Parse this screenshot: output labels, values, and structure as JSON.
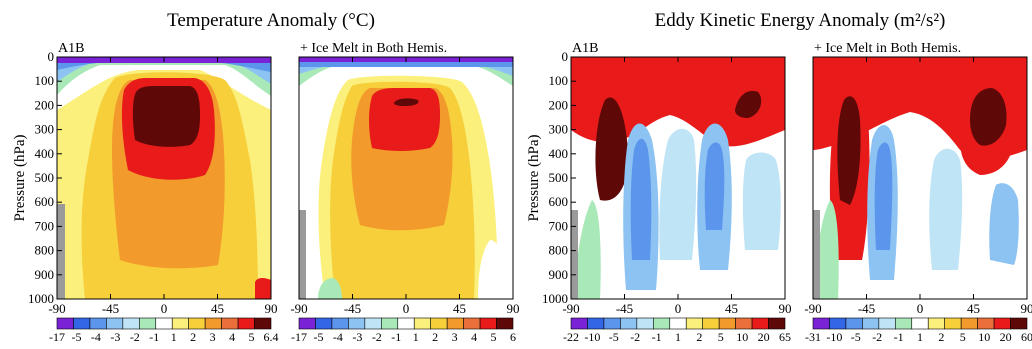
{
  "titles": {
    "temperature": "Temperature Anomaly (°C)",
    "eke": "Eddy Kinetic Energy Anomaly (m²/s²)"
  },
  "chart_data": [
    {
      "type": "heatmap",
      "title": "Temperature Anomaly (°C)",
      "panel_label": "A1B",
      "x_ticks": [
        -90,
        -45,
        0,
        45,
        90
      ],
      "y_ticks": [
        0,
        100,
        200,
        300,
        400,
        500,
        600,
        700,
        800,
        900,
        1000
      ],
      "ylabel": "Pressure (hPa)",
      "xlim": [
        -90,
        90
      ],
      "ylim": [
        1000,
        0
      ],
      "colorbar": {
        "labels": [
          "-17",
          "-5",
          "-4",
          "-3",
          "-2",
          "-1",
          "1",
          "2",
          "3",
          "4",
          "5",
          "6.4"
        ],
        "colors": [
          "#7a22d6",
          "#3366e6",
          "#5c95ec",
          "#8cc3f2",
          "#bfe4f5",
          "#a9e9b8",
          "#ffffff",
          "#fbf07c",
          "#f6cf3b",
          "#f39a2c",
          "#ea6f3b",
          "#e81a1a",
          "#5e0808"
        ]
      },
      "regions": [
        {
          "level": "-17..-5",
          "lat": [
            -90,
            90
          ],
          "p": [
            0,
            22
          ]
        },
        {
          "level": "-5..-4",
          "lat": [
            -90,
            90
          ],
          "p": [
            0,
            40
          ]
        },
        {
          "level": "2..3",
          "lat": [
            -68,
            72
          ],
          "p": [
            60,
            1000
          ]
        },
        {
          "level": "3..4",
          "lat": [
            -35,
            48
          ],
          "p": [
            60,
            860
          ]
        },
        {
          "level": "5..6.4",
          "lat": [
            -28,
            28
          ],
          "p": [
            110,
            500
          ]
        },
        {
          "level": ">6.4",
          "lat": [
            -18,
            18
          ],
          "p": [
            130,
            330
          ]
        }
      ]
    },
    {
      "type": "heatmap",
      "title": "Temperature Anomaly (°C)",
      "panel_label": "+ Ice Melt in Both Hemis.",
      "x_ticks": [
        -90,
        -45,
        0,
        45,
        90
      ],
      "y_ticks": [
        0,
        100,
        200,
        300,
        400,
        500,
        600,
        700,
        800,
        900,
        1000
      ],
      "ylabel": "Pressure (hPa)",
      "xlim": [
        -90,
        90
      ],
      "ylim": [
        1000,
        0
      ],
      "colorbar": {
        "labels": [
          "-17",
          "-5",
          "-4",
          "-3",
          "-2",
          "-1",
          "1",
          "2",
          "3",
          "4",
          "5",
          "6"
        ],
        "colors": [
          "#7a22d6",
          "#3366e6",
          "#5c95ec",
          "#8cc3f2",
          "#bfe4f5",
          "#a9e9b8",
          "#ffffff",
          "#fbf07c",
          "#f6cf3b",
          "#f39a2c",
          "#ea6f3b",
          "#e81a1a",
          "#5e0808"
        ]
      },
      "regions": [
        {
          "level": "-17..-5",
          "lat": [
            -90,
            90
          ],
          "p": [
            0,
            22
          ]
        },
        {
          "level": "1..2",
          "lat": [
            -62,
            68
          ],
          "p": [
            60,
            1000
          ]
        },
        {
          "level": "2..3",
          "lat": [
            -38,
            42
          ],
          "p": [
            90,
            1000
          ]
        },
        {
          "level": "4..5",
          "lat": [
            -25,
            28
          ],
          "p": [
            110,
            420
          ]
        },
        {
          "level": ">6",
          "lat": [
            -8,
            10
          ],
          "p": [
            175,
            205
          ]
        }
      ]
    },
    {
      "type": "heatmap",
      "title": "Eddy Kinetic Energy Anomaly (m²/s²)",
      "panel_label": "A1B",
      "x_ticks": [
        -90,
        -45,
        0,
        45,
        90
      ],
      "y_ticks": [
        0,
        100,
        200,
        300,
        400,
        500,
        600,
        700,
        800,
        900,
        1000
      ],
      "ylabel": "Pressure (hPa)",
      "xlim": [
        -90,
        90
      ],
      "ylim": [
        1000,
        0
      ],
      "colorbar": {
        "labels": [
          "-22",
          "-10",
          "-5",
          "-2",
          "-1",
          "1",
          "2",
          "5",
          "10",
          "20",
          "65"
        ],
        "colors": [
          "#7a22d6",
          "#3366e6",
          "#5c95ec",
          "#8cc3f2",
          "#bfe4f5",
          "#a9e9b8",
          "#ffffff",
          "#fbf07c",
          "#f6cf3b",
          "#f39a2c",
          "#ea6f3b",
          "#e81a1a",
          "#5e0808"
        ]
      },
      "regions": [
        {
          "level": "10..20",
          "lat": [
            -90,
            90
          ],
          "p": [
            0,
            280
          ]
        },
        {
          "level": "-5..-2",
          "lat": [
            -45,
            -5
          ],
          "p": [
            200,
            950
          ]
        },
        {
          "level": "-5..-2",
          "lat": [
            15,
            50
          ],
          "p": [
            250,
            900
          ]
        },
        {
          "level": "20..65",
          "lat": [
            -75,
            -55
          ],
          "p": [
            80,
            380
          ]
        },
        {
          "level": ">65",
          "lat": [
            45,
            70
          ],
          "p": [
            70,
            200
          ]
        }
      ]
    },
    {
      "type": "heatmap",
      "title": "Eddy Kinetic Energy Anomaly (m²/s²)",
      "panel_label": "+ Ice Melt in Both Hemis.",
      "x_ticks": [
        -90,
        -45,
        0,
        45,
        90
      ],
      "y_ticks": [
        0,
        100,
        200,
        300,
        400,
        500,
        600,
        700,
        800,
        900,
        1000
      ],
      "ylabel": "Pressure (hPa)",
      "xlim": [
        -90,
        90
      ],
      "ylim": [
        1000,
        0
      ],
      "colorbar": {
        "labels": [
          "-31",
          "-10",
          "-5",
          "-2",
          "-1",
          "1",
          "2",
          "5",
          "10",
          "20",
          "60"
        ],
        "colors": [
          "#7a22d6",
          "#3366e6",
          "#5c95ec",
          "#8cc3f2",
          "#bfe4f5",
          "#a9e9b8",
          "#ffffff",
          "#fbf07c",
          "#f6cf3b",
          "#f39a2c",
          "#ea6f3b",
          "#e81a1a",
          "#5e0808"
        ]
      },
      "regions": [
        {
          "level": "10..20",
          "lat": [
            -90,
            90
          ],
          "p": [
            0,
            350
          ]
        },
        {
          "level": "20..60",
          "lat": [
            -80,
            -45
          ],
          "p": [
            60,
            750
          ]
        },
        {
          "level": ">60",
          "lat": [
            -70,
            -50
          ],
          "p": [
            100,
            500
          ]
        },
        {
          "level": "20..60",
          "lat": [
            35,
            85
          ],
          "p": [
            60,
            450
          ]
        },
        {
          "level": ">60",
          "lat": [
            45,
            78
          ],
          "p": [
            80,
            300
          ]
        },
        {
          "level": "-5..-2",
          "lat": [
            -40,
            20
          ],
          "p": [
            220,
            950
          ]
        }
      ]
    }
  ]
}
